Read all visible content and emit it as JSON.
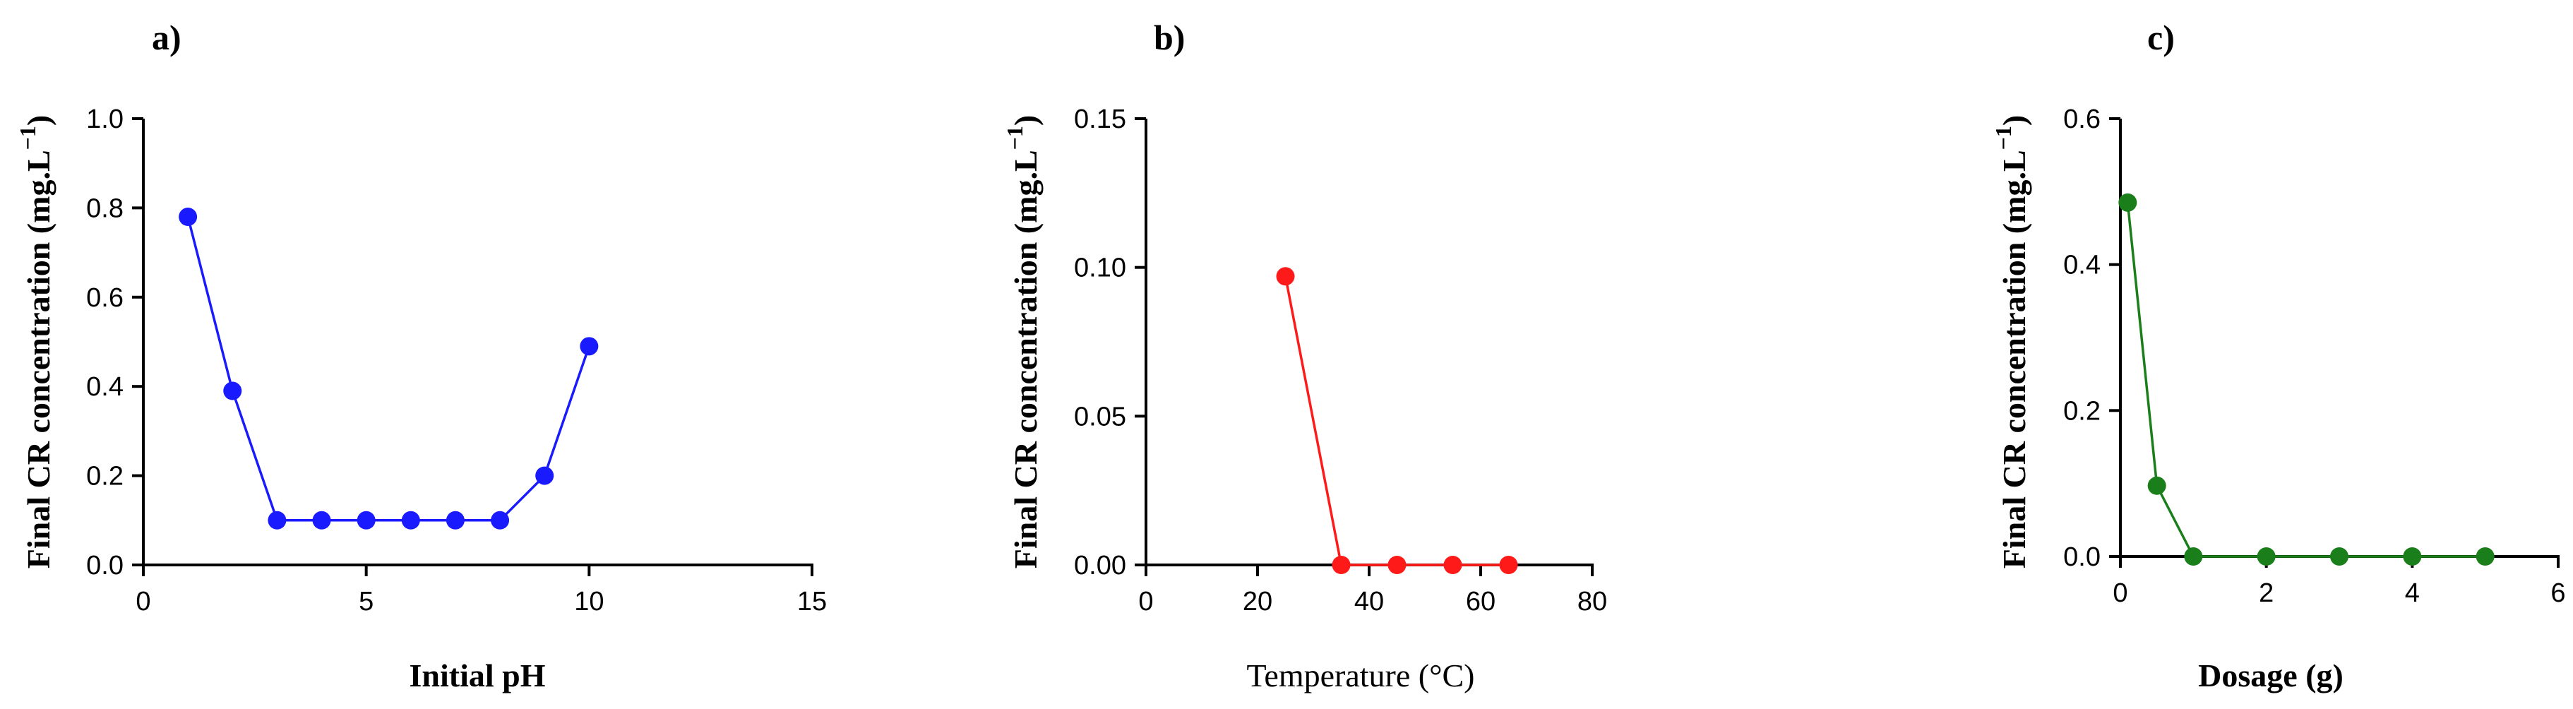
{
  "chart_data": [
    {
      "panel_label": "a)",
      "type": "line",
      "xlabel": "Initial pH",
      "ylabel": "Final CR concentration (mg.L",
      "ylabel_sup": "−1",
      "ylabel_close": ")",
      "xlim": [
        0,
        15
      ],
      "ylim": [
        0,
        1.0
      ],
      "xticks": [
        0,
        5,
        10,
        15
      ],
      "xtick_labels": [
        "0",
        "5",
        "10",
        "15"
      ],
      "yticks": [
        0,
        0.2,
        0.4,
        0.6,
        0.8,
        1.0
      ],
      "ytick_labels": [
        "0.0",
        "0.2",
        "0.4",
        "0.6",
        "0.8",
        "1.0"
      ],
      "series": [
        {
          "name": "pH",
          "color": "#1a1aff",
          "x": [
            1,
            2,
            3,
            4,
            5,
            6,
            7,
            8,
            9,
            10
          ],
          "y": [
            0.78,
            0.39,
            0.1,
            0.1,
            0.1,
            0.1,
            0.1,
            0.1,
            0.2,
            0.49
          ]
        }
      ]
    },
    {
      "panel_label": "b)",
      "type": "line",
      "xlabel": "Temperature (°C)",
      "ylabel": "Final CR concentration (mg.L",
      "ylabel_sup": "−1",
      "ylabel_close": ")",
      "xlim": [
        0,
        80
      ],
      "ylim": [
        0,
        0.15
      ],
      "xticks": [
        0,
        20,
        40,
        60,
        80
      ],
      "xtick_labels": [
        "0",
        "20",
        "40",
        "60",
        "80"
      ],
      "yticks": [
        0,
        0.05,
        0.1,
        0.15
      ],
      "ytick_labels": [
        "0.00",
        "0.05",
        "0.10",
        "0.15"
      ],
      "series": [
        {
          "name": "Temperature",
          "color": "#ff1a1a",
          "x": [
            25,
            35,
            45,
            55,
            65
          ],
          "y": [
            0.097,
            0.0,
            0.0,
            0.0,
            0.0
          ]
        }
      ]
    },
    {
      "panel_label": "c)",
      "type": "line",
      "xlabel": "Dosage (g)",
      "ylabel": "Final CR concentration (mg.L",
      "ylabel_sup": "−1",
      "ylabel_close": ")",
      "xlim": [
        0,
        6
      ],
      "ylim": [
        0,
        0.6
      ],
      "xticks": [
        0,
        2,
        4,
        6
      ],
      "xtick_labels": [
        "0",
        "2",
        "4",
        "6"
      ],
      "yticks": [
        0,
        0.2,
        0.4,
        0.6
      ],
      "ytick_labels": [
        "0.0",
        "0.2",
        "0.4",
        "0.6"
      ],
      "series": [
        {
          "name": "Dosage",
          "color": "#1a7f1a",
          "x": [
            0.1,
            0.5,
            1,
            2,
            3,
            4,
            5
          ],
          "y": [
            0.485,
            0.097,
            0.0,
            0.0,
            0.0,
            0.0,
            0.0
          ]
        }
      ]
    }
  ]
}
